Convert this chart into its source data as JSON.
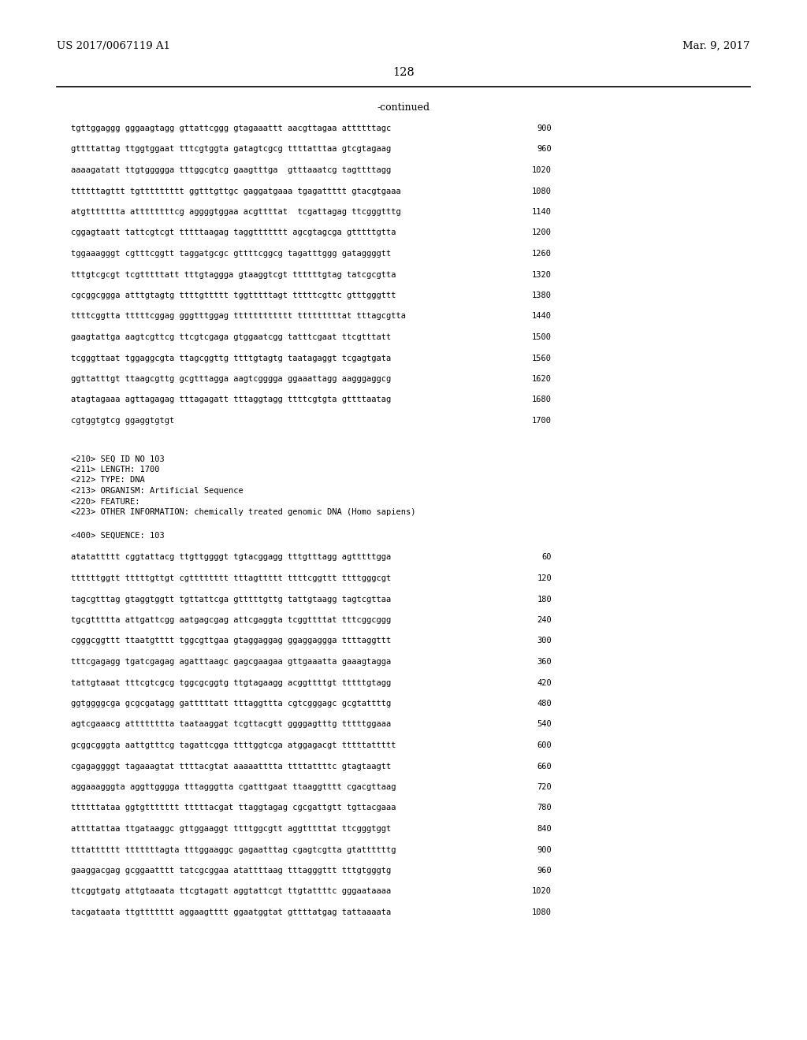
{
  "header_left": "US 2017/0067119 A1",
  "header_right": "Mar. 9, 2017",
  "page_number": "128",
  "continued_text": "-continued",
  "background_color": "#ffffff",
  "text_color": "#000000",
  "mono_font_size": 7.5,
  "header_font_size": 9.5,
  "page_num_font_size": 10.5,
  "sequence_lines_top": [
    [
      "tgttggaggg gggaagtagg gttattcggg gtagaaattt aacgttagaa attttttagc",
      "900"
    ],
    [
      "gttttattag ttggtggaat tttcgtggta gatagtcgcg ttttatttaa gtcgtagaag",
      "960"
    ],
    [
      "aaaagatatt ttgtggggga tttggcgtcg gaagtttga  gtttaaatcg tagttttagg",
      "1020"
    ],
    [
      "ttttttagttt tgttttttttt ggtttgttgc gaggatgaaa tgagattttt gtacgtgaaa",
      "1080"
    ],
    [
      "atgttttttta attttttttcg aggggtggaa acgttttat  tcgattagag ttcgggtttg",
      "1140"
    ],
    [
      "cggagtaatt tattcgtcgt tttttaagag taggttttttt agcgtagcga gtttttgtta",
      "1200"
    ],
    [
      "tggaaagggt cgtttcggtt taggatgcgc gttttcggcg tagatttggg gataggggtt",
      "1260"
    ],
    [
      "tttgtcgcgt tcgtttttatt tttgtaggga gtaaggtcgt ttttttgtag tatcgcgtta",
      "1320"
    ],
    [
      "cgcggcggga atttgtagtg ttttgttttt tggtttttagt tttttcgttc gtttgggttt",
      "1380"
    ],
    [
      "ttttcggtta tttttcggag gggtttggag tttttttttttt tttttttttat tttagcgtta",
      "1440"
    ],
    [
      "gaagtattga aagtcgttcg ttcgtcgaga gtggaatcgg tatttcgaat ttcgtttatt",
      "1500"
    ],
    [
      "tcgggttaat tggaggcgta ttagcggttg ttttgtagtg taatagaggt tcgagtgata",
      "1560"
    ],
    [
      "ggttatttgt ttaagcgttg gcgtttagga aagtcgggga ggaaattagg aagggaggcg",
      "1620"
    ],
    [
      "atagtagaaa agttagagag tttagagatt tttaggtagg ttttcgtgta gttttaatag",
      "1680"
    ],
    [
      "cgtggtgtcg ggaggtgtgt",
      "1700"
    ]
  ],
  "meta_lines": [
    "<210> SEQ ID NO 103",
    "<211> LENGTH: 1700",
    "<212> TYPE: DNA",
    "<213> ORGANISM: Artificial Sequence",
    "<220> FEATURE:",
    "<223> OTHER INFORMATION: chemically treated genomic DNA (Homo sapiens)"
  ],
  "sequence_label": "<400> SEQUENCE: 103",
  "sequence_lines_bottom": [
    [
      "atatattttt cggtattacg ttgttggggt tgtacggagg tttgtttagg agtttttgga",
      "60"
    ],
    [
      "ttttttggtt tttttgttgt cgtttttttt tttagttttt ttttcggttt ttttgggcgt",
      "120"
    ],
    [
      "tagcgtttag gtaggtggtt tgttattcga gtttttgttg tattgtaagg tagtcgttaa",
      "180"
    ],
    [
      "tgcgttttta attgattcgg aatgagcgag attcgaggta tcggttttat tttcggcggg",
      "240"
    ],
    [
      "cgggcggttt ttaatgtttt tggcgttgaa gtaggaggag ggaggaggga ttttaggttt",
      "300"
    ],
    [
      "tttcgagagg tgatcgagag agatttaagc gagcgaagaa gttgaaatta gaaagtagga",
      "360"
    ],
    [
      "tattgtaaat tttcgtcgcg tggcgcggtg ttgtagaagg acggttttgt tttttgtagg",
      "420"
    ],
    [
      "ggtggggcga gcgcgatagg gatttttatt tttaggttta cgtcgggagc gcgtattttg",
      "480"
    ],
    [
      "agtcgaaacg atttttttta taataaggat tcgttacgtt ggggagtttg tttttggaaa",
      "540"
    ],
    [
      "gcggcgggta aattgtttcg tagattcgga ttttggtcga atggagacgt tttttattttt",
      "600"
    ],
    [
      "cgagaggggt tagaaagtat ttttacgtat aaaaatttta ttttattttc gtagtaagtt",
      "660"
    ],
    [
      "aggaaagggta aggttgggga tttagggtta cgatttgaat ttaaggtttt cgacgttaag",
      "720"
    ],
    [
      "ttttttataa ggtgttttttt tttttacgat ttaggtagag cgcgattgtt tgttacgaaa",
      "780"
    ],
    [
      "attttattaa ttgataaggc gttggaaggt ttttggcgtt aggtttttat ttcgggtggt",
      "840"
    ],
    [
      "tttatttttt tttttttagta tttggaaggc gagaatttag cgagtcgtta gtattttttg",
      "900"
    ],
    [
      "gaaggacgag gcggaatttt tatcgcggaa atattttaag tttagggttt tttgtgggtg",
      "960"
    ],
    [
      "ttcggtgatg attgtaaata ttcgtagatt aggtattcgt ttgtattttc gggaataaaa",
      "1020"
    ],
    [
      "tacgataata ttgttttttt aggaagtttt ggaatggtat gttttatgag tattaaaata",
      "1080"
    ]
  ]
}
